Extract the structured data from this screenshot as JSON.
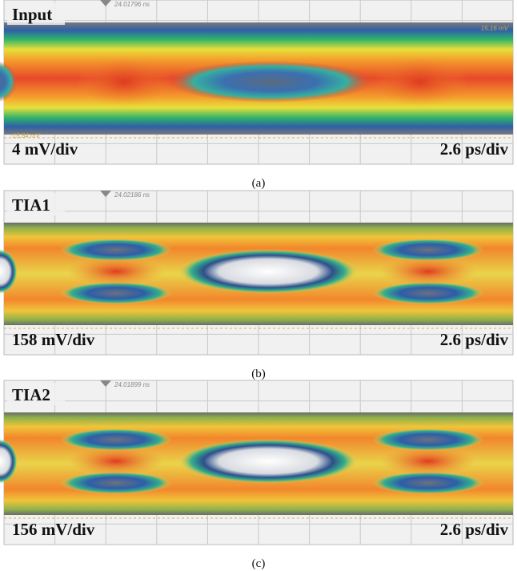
{
  "panels": [
    {
      "label": "Input",
      "marker_time": "24.01796 ns",
      "top_level": "15.16 mV",
      "bottom_level": "-15.84 mV",
      "vertical_scale": "4 mV/div",
      "horizontal_scale": "2.6 ps/div",
      "caption": "(a)"
    },
    {
      "label": "TIA1",
      "marker_time": "24.02186 ns",
      "vertical_scale": "158 mV/div",
      "horizontal_scale": "2.6 ps/div",
      "caption": "(b)"
    },
    {
      "label": "TIA2",
      "marker_time": "24.01899 ns",
      "vertical_scale": "156 mV/div",
      "horizontal_scale": "2.6 ps/div",
      "caption": "(c)"
    }
  ]
}
